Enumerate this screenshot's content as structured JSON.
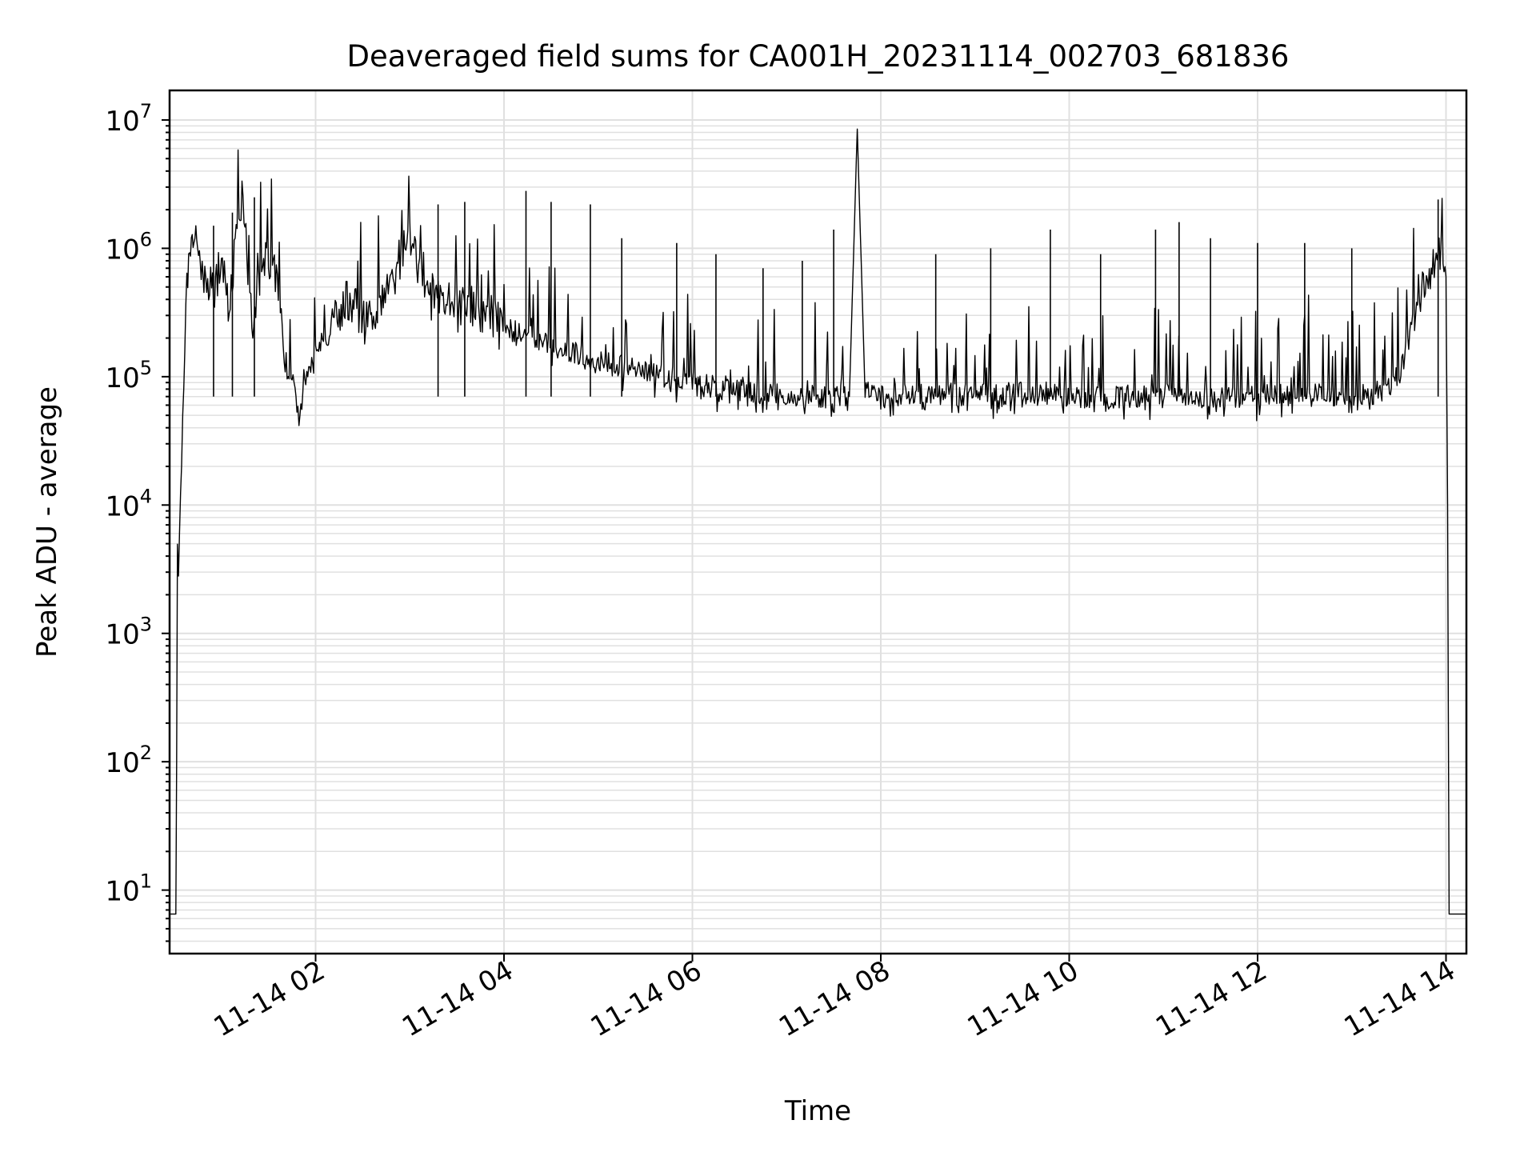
{
  "chart_data": {
    "type": "line",
    "title": "Deaveraged field sums for CA001H_20231114_002703_681836",
    "xlabel": "Time",
    "ylabel": "Peak ADU - average",
    "yscale": "log",
    "ylim": [
      3.2,
      17000000
    ],
    "xlim": [
      "2023-11-14 00:27",
      "2023-11-14 14:13"
    ],
    "grid": true,
    "grid_minor": true,
    "line_color": "#000000",
    "grid_color": "#e0e0e0",
    "x_ticks": [
      {
        "value": "2023-11-14 02:00",
        "label": "11-14 02"
      },
      {
        "value": "2023-11-14 04:00",
        "label": "11-14 04"
      },
      {
        "value": "2023-11-14 06:00",
        "label": "11-14 06"
      },
      {
        "value": "2023-11-14 08:00",
        "label": "11-14 08"
      },
      {
        "value": "2023-11-14 10:00",
        "label": "11-14 10"
      },
      {
        "value": "2023-11-14 12:00",
        "label": "11-14 12"
      },
      {
        "value": "2023-11-14 14:00",
        "label": "11-14 14"
      }
    ],
    "y_ticks": [
      {
        "value": 10,
        "base": "10",
        "exp": "1"
      },
      {
        "value": 100,
        "base": "10",
        "exp": "2"
      },
      {
        "value": 1000,
        "base": "10",
        "exp": "3"
      },
      {
        "value": 10000,
        "base": "10",
        "exp": "4"
      },
      {
        "value": 100000,
        "base": "10",
        "exp": "5"
      },
      {
        "value": 1000000,
        "base": "10",
        "exp": "6"
      },
      {
        "value": 10000000,
        "base": "10",
        "exp": "7"
      }
    ],
    "series": [
      {
        "x": [
          "2023-11-14 00:27",
          "2023-11-14 00:31",
          "2023-11-14 00:32",
          "2023-11-14 00:34",
          "2023-11-14 00:36",
          "2023-11-14 00:38",
          "2023-11-14 00:42",
          "2023-11-14 00:46",
          "2023-11-14 00:50",
          "2023-11-14 00:55",
          "2023-11-14 01:00",
          "2023-11-14 01:05",
          "2023-11-14 01:10",
          "2023-11-14 01:15",
          "2023-11-14 01:20",
          "2023-11-14 01:25",
          "2023-11-14 01:30",
          "2023-11-14 01:35",
          "2023-11-14 01:40",
          "2023-11-14 01:45",
          "2023-11-14 01:50",
          "2023-11-14 01:55",
          "2023-11-14 02:00",
          "2023-11-14 02:10",
          "2023-11-14 02:20",
          "2023-11-14 02:30",
          "2023-11-14 02:40",
          "2023-11-14 02:50",
          "2023-11-14 03:00",
          "2023-11-14 03:05",
          "2023-11-14 03:10",
          "2023-11-14 03:20",
          "2023-11-14 03:30",
          "2023-11-14 03:40",
          "2023-11-14 03:50",
          "2023-11-14 04:00",
          "2023-11-14 04:15",
          "2023-11-14 04:30",
          "2023-11-14 04:45",
          "2023-11-14 05:00",
          "2023-11-14 05:15",
          "2023-11-14 05:30",
          "2023-11-14 05:45",
          "2023-11-14 06:00",
          "2023-11-14 06:20",
          "2023-11-14 06:40",
          "2023-11-14 07:00",
          "2023-11-14 07:20",
          "2023-11-14 07:40",
          "2023-11-14 07:45",
          "2023-11-14 07:50",
          "2023-11-14 08:00",
          "2023-11-14 08:30",
          "2023-11-14 09:00",
          "2023-11-14 09:30",
          "2023-11-14 10:00",
          "2023-11-14 10:30",
          "2023-11-14 11:00",
          "2023-11-14 11:30",
          "2023-11-14 12:00",
          "2023-11-14 12:30",
          "2023-11-14 13:00",
          "2023-11-14 13:15",
          "2023-11-14 13:30",
          "2023-11-14 13:40",
          "2023-11-14 13:50",
          "2023-11-14 13:55",
          "2023-11-14 14:00",
          "2023-11-14 14:01",
          "2023-11-14 14:02",
          "2023-11-14 14:13"
        ],
        "y": [
          6.5,
          6.5,
          1500,
          12000,
          80000,
          500000,
          1300000,
          900000,
          500000,
          450000,
          800000,
          300000,
          1600000,
          2000000,
          200000,
          600000,
          1000000,
          700000,
          150000,
          90000,
          60000,
          100000,
          150000,
          250000,
          400000,
          300000,
          350000,
          600000,
          1400000,
          700000,
          500000,
          450000,
          400000,
          350000,
          300000,
          250000,
          200000,
          180000,
          150000,
          130000,
          120000,
          110000,
          100000,
          90000,
          80000,
          75000,
          72000,
          70000,
          70000,
          8500000,
          75000,
          70000,
          75000,
          72000,
          75000,
          70000,
          70000,
          72000,
          70000,
          70000,
          72000,
          70000,
          75000,
          100000,
          300000,
          700000,
          1000000,
          600000,
          10000,
          6.5,
          6.5
        ]
      }
    ],
    "spikes": [
      {
        "x": "2023-11-14 00:55",
        "y": 1500000
      },
      {
        "x": "2023-11-14 01:07",
        "y": 1900000
      },
      {
        "x": "2023-11-14 01:21",
        "y": 2500000
      },
      {
        "x": "2023-11-14 03:18",
        "y": 2200000
      },
      {
        "x": "2023-11-14 03:35",
        "y": 2300000
      },
      {
        "x": "2023-11-14 04:14",
        "y": 2800000
      },
      {
        "x": "2023-11-14 04:30",
        "y": 2300000
      },
      {
        "x": "2023-11-14 04:55",
        "y": 2200000
      },
      {
        "x": "2023-11-14 05:15",
        "y": 1200000
      },
      {
        "x": "2023-11-14 05:50",
        "y": 1100000
      },
      {
        "x": "2023-11-14 06:15",
        "y": 900000
      },
      {
        "x": "2023-11-14 06:45",
        "y": 700000
      },
      {
        "x": "2023-11-14 07:10",
        "y": 800000
      },
      {
        "x": "2023-11-14 07:30",
        "y": 1400000
      },
      {
        "x": "2023-11-14 08:35",
        "y": 900000
      },
      {
        "x": "2023-11-14 09:10",
        "y": 1000000
      },
      {
        "x": "2023-11-14 09:48",
        "y": 1400000
      },
      {
        "x": "2023-11-14 10:20",
        "y": 900000
      },
      {
        "x": "2023-11-14 10:55",
        "y": 1400000
      },
      {
        "x": "2023-11-14 11:10",
        "y": 1600000
      },
      {
        "x": "2023-11-14 11:30",
        "y": 1200000
      },
      {
        "x": "2023-11-14 12:00",
        "y": 1100000
      },
      {
        "x": "2023-11-14 12:30",
        "y": 1100000
      },
      {
        "x": "2023-11-14 13:00",
        "y": 1000000
      },
      {
        "x": "2023-11-14 13:55",
        "y": 2400000
      }
    ]
  }
}
